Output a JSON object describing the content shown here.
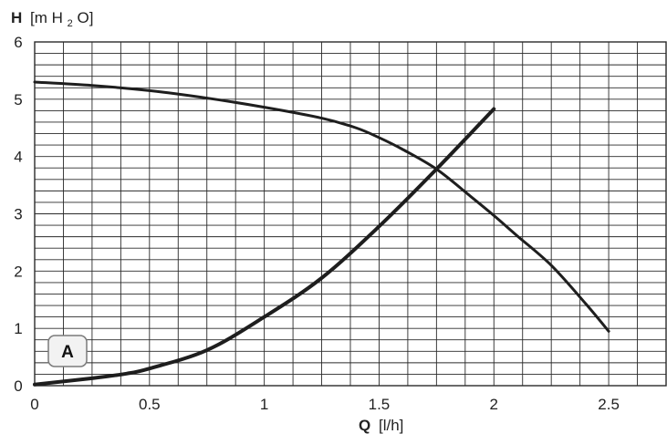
{
  "chart_data": {
    "type": "line",
    "title": "",
    "ylabel_symbol": "H",
    "ylabel_unit_open": "[m H",
    "ylabel_unit_sub": "2",
    "ylabel_unit_close": "O]",
    "xlabel_symbol": "Q",
    "xlabel_unit": "[l/h]",
    "xlim": [
      0,
      2.75
    ],
    "ylim": [
      0,
      6
    ],
    "x_ticks": [
      0,
      0.5,
      1,
      1.5,
      2,
      2.5
    ],
    "x_tick_labels": [
      "0",
      "0.5",
      "1",
      "1.5",
      "2",
      "2.5"
    ],
    "y_ticks": [
      0,
      1,
      2,
      3,
      4,
      5,
      6
    ],
    "y_tick_labels": [
      "0",
      "1",
      "2",
      "3",
      "4",
      "5",
      "6"
    ],
    "grid": true,
    "grid_minor_x_step": 0.125,
    "grid_minor_y_step": 0.2,
    "badge_label": "A",
    "series": [
      {
        "x": [
          0,
          0.25,
          0.5,
          0.75,
          1.0,
          1.25,
          1.4,
          1.5,
          1.6,
          1.75,
          1.9,
          2.0,
          2.1,
          2.25,
          2.4,
          2.5
        ],
        "y": [
          5.3,
          5.24,
          5.15,
          5.02,
          4.86,
          4.67,
          4.5,
          4.33,
          4.13,
          3.78,
          3.3,
          2.97,
          2.62,
          2.1,
          1.43,
          0.95
        ]
      },
      {
        "x": [
          0,
          0.25,
          0.4,
          0.5,
          0.75,
          1.0,
          1.25,
          1.5,
          1.75,
          2.0
        ],
        "y": [
          0.02,
          0.13,
          0.21,
          0.3,
          0.62,
          1.2,
          1.88,
          2.78,
          3.78,
          4.83
        ]
      }
    ]
  },
  "colors": {
    "curve": "#1e1e1e",
    "grid": "#2a2a2a",
    "badge_fill": "#f2f2f2",
    "badge_stroke": "#7a7a7a"
  }
}
